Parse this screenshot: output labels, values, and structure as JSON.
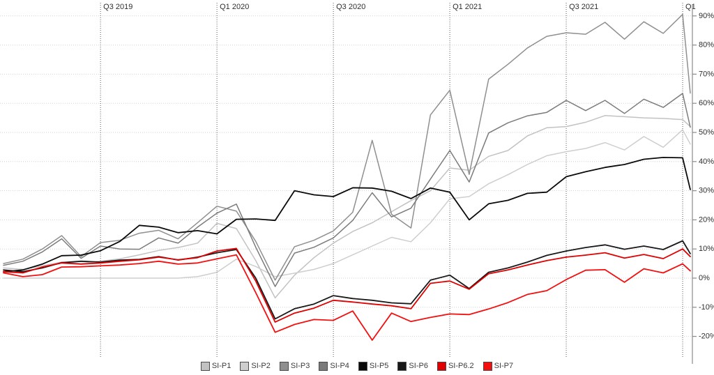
{
  "chart_data": {
    "type": "line",
    "title": "",
    "x": {
      "points": 37,
      "gridlines": [
        {
          "index": 5,
          "label": "Q3 2019"
        },
        {
          "index": 11,
          "label": "Q1 2020"
        },
        {
          "index": 17,
          "label": "Q3 2020"
        },
        {
          "index": 23,
          "label": "Q1 2021"
        },
        {
          "index": 29,
          "label": "Q3 2021"
        },
        {
          "index": 35,
          "label": "Q1"
        }
      ]
    },
    "y": {
      "min": -20,
      "max": 90,
      "step": 10,
      "suffix": "%",
      "tick_labels": [
        "90%",
        "80%",
        "70%",
        "60%",
        "50%",
        "40%",
        "30%",
        "20%",
        "10%",
        "0%",
        "-10%",
        "-20%"
      ]
    },
    "grid": {
      "horizontal": true,
      "vertical": true
    },
    "legend_position": "bottom",
    "series": [
      {
        "name": "SI-P1",
        "color": "#c2c2c2",
        "values": [
          3.5,
          3.0,
          4.2,
          5.5,
          5.0,
          5.8,
          6.6,
          8.0,
          9.5,
          10.5,
          12.0,
          18.8,
          17.0,
          6.0,
          -6.8,
          1.0,
          7.0,
          12.0,
          16.0,
          19.0,
          22.8,
          26.6,
          30.0,
          37.8,
          37.0,
          41.8,
          43.8,
          48.8,
          51.6,
          52.0,
          53.5,
          55.8,
          55.4,
          55.0,
          54.8,
          54.4,
          52.0
        ]
      },
      {
        "name": "SI-P2",
        "color": "#cecece",
        "values": [
          0,
          0,
          0,
          0,
          0,
          0,
          0,
          0,
          0,
          0,
          0.5,
          2.0,
          6.5,
          4.0,
          0.5,
          1.7,
          3.0,
          5.0,
          8.0,
          11.0,
          14.0,
          12.5,
          19.0,
          27.2,
          28.0,
          32.4,
          35.5,
          39.0,
          42.0,
          43.4,
          44.5,
          46.5,
          44.0,
          48.6,
          44.9,
          50.9,
          46.0
        ]
      },
      {
        "name": "SI-P3",
        "color": "#8f8f8f",
        "values": [
          5.0,
          6.5,
          10.0,
          14.6,
          7.4,
          12.2,
          13.0,
          15.4,
          16.4,
          13.5,
          19.0,
          24.7,
          23.0,
          12.6,
          -0.7,
          10.8,
          13.0,
          16.2,
          22.6,
          47.3,
          21.9,
          17.2,
          56.0,
          64.5,
          35.6,
          68.3,
          73.4,
          79.0,
          83.0,
          84.2,
          83.7,
          87.8,
          82.0,
          88.0,
          84.0,
          90.5,
          63.5
        ]
      },
      {
        "name": "SI-P4",
        "color": "#7b7b7b",
        "values": [
          4.4,
          5.8,
          9.0,
          13.5,
          6.8,
          11.0,
          10.0,
          9.9,
          13.8,
          12.0,
          17.5,
          22.3,
          25.4,
          10.6,
          -2.9,
          8.6,
          10.6,
          13.8,
          19.8,
          29.3,
          21.0,
          24.0,
          34.0,
          43.8,
          33.0,
          49.8,
          53.3,
          55.7,
          56.9,
          61.0,
          57.5,
          61.0,
          56.5,
          61.4,
          58.6,
          63.4,
          51.8
        ]
      },
      {
        "name": "SI-P5",
        "color": "#0a0a0a",
        "values": [
          2.2,
          2.8,
          4.8,
          7.7,
          7.9,
          9.4,
          12.6,
          18.1,
          17.5,
          15.6,
          16.3,
          15.2,
          20.2,
          20.3,
          19.8,
          30.0,
          28.6,
          28.0,
          31.0,
          30.9,
          29.8,
          27.3,
          30.9,
          29.5,
          20.0,
          25.5,
          26.7,
          29.1,
          29.5,
          34.8,
          36.5,
          38.0,
          39.0,
          40.8,
          41.4,
          41.3,
          30.4
        ]
      },
      {
        "name": "SI-P6",
        "color": "#181818",
        "values": [
          2.8,
          2.2,
          3.5,
          5.3,
          5.8,
          5.5,
          6.2,
          6.4,
          7.4,
          6.2,
          7.2,
          8.7,
          9.8,
          0.0,
          -14.0,
          -10.5,
          -8.9,
          -6.0,
          -7.0,
          -7.6,
          -8.5,
          -8.8,
          -0.7,
          1.0,
          -3.6,
          2.0,
          3.5,
          5.5,
          7.8,
          9.3,
          10.5,
          11.4,
          9.9,
          11.0,
          9.8,
          12.8,
          8.4
        ]
      },
      {
        "name": "SI-P6.2",
        "color": "#e00000",
        "values": [
          2.2,
          1.8,
          3.8,
          5.2,
          4.8,
          5.2,
          5.8,
          6.3,
          7.2,
          6.3,
          7.0,
          9.3,
          10.2,
          -1.0,
          -15.1,
          -12.0,
          -10.3,
          -7.6,
          -8.2,
          -8.9,
          -9.5,
          -10.5,
          -1.8,
          -1.0,
          -3.8,
          1.5,
          2.8,
          4.5,
          6.0,
          7.2,
          7.9,
          8.7,
          6.9,
          8.1,
          6.7,
          10.0,
          7.4
        ]
      },
      {
        "name": "SI-P7",
        "color": "#f40f0f",
        "values": [
          1.8,
          0.5,
          1.2,
          3.8,
          3.9,
          4.2,
          4.5,
          5.0,
          5.8,
          4.8,
          5.2,
          6.6,
          8.0,
          -5.0,
          -18.6,
          -15.9,
          -14.2,
          -14.5,
          -11.3,
          -21.3,
          -12.0,
          -14.9,
          -13.5,
          -12.3,
          -12.5,
          -10.6,
          -8.4,
          -5.6,
          -4.3,
          -0.5,
          2.7,
          2.9,
          -1.4,
          3.2,
          1.8,
          4.9,
          2.5
        ]
      }
    ],
    "style": {
      "h_grid_color": "#d2d2d2",
      "v_grid_color": "#5a5a5a",
      "axis_color": "#8a8a8a",
      "label_color": "#2e2e2e"
    }
  }
}
